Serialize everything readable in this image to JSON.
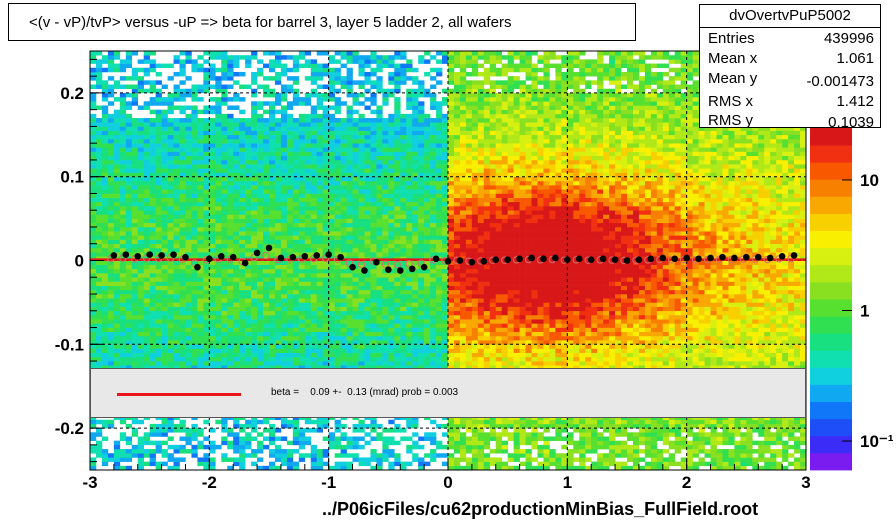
{
  "title": "<(v - vP)/tvP> versus  -uP => beta for barrel 3, layer 5 ladder 2, all wafers",
  "stats": {
    "name": "dvOvertvPuP5002",
    "rows": [
      {
        "label": "Entries",
        "value": "439996"
      },
      {
        "label": "Mean x",
        "value": "1.061"
      },
      {
        "label": "Mean y",
        "value": "-0.001473"
      },
      {
        "label": "RMS x",
        "value": "1.412"
      },
      {
        "label": "RMS y",
        "value": "0.1039"
      }
    ]
  },
  "legend": {
    "text": "beta =    0.09 +-  0.13 (mrad) prob = 0.003",
    "line_color": "#e8141a"
  },
  "footer": "../P06icFiles/cu62productionMinBias_FullField.root",
  "colors": {
    "fit_line": "#e8141a",
    "points": "#000000",
    "palette": [
      "#7a1cf0",
      "#3c2cf8",
      "#1e4ef8",
      "#1078f8",
      "#10a8f0",
      "#10d0e0",
      "#10e0b0",
      "#18e080",
      "#30e050",
      "#58e030",
      "#88e020",
      "#b0e818",
      "#d8f010",
      "#f8f000",
      "#f8d000",
      "#f8a800",
      "#f88000",
      "#f85800",
      "#f03010",
      "#d81818"
    ]
  },
  "chart_data": {
    "type": "heatmap",
    "xlim": [
      -3,
      3
    ],
    "ylim": [
      -0.25,
      0.25
    ],
    "x_ticks": [
      -3,
      -2,
      -1,
      0,
      1,
      2,
      3
    ],
    "x_tick_labels": [
      "-3",
      "-2",
      "-1",
      "0",
      "1",
      "2",
      "3"
    ],
    "y_ticks": [
      -0.2,
      -0.1,
      0,
      0.1,
      0.2
    ],
    "y_tick_labels": [
      "-0.2",
      "-0.1",
      "0",
      "0.1",
      "0.2"
    ],
    "grid": true,
    "colorbar": {
      "scale": "log",
      "tick_labels": [
        "10",
        "1",
        "10⁻¹"
      ],
      "tick_values": [
        10,
        1,
        0.1
      ]
    },
    "fit": {
      "slope_mrad": 0.09,
      "error_mrad": 0.13,
      "prob": 0.003
    },
    "profile_points": {
      "x": [
        -2.8,
        -2.7,
        -2.6,
        -2.5,
        -2.4,
        -2.3,
        -2.2,
        -2.1,
        -2.0,
        -1.9,
        -1.8,
        -1.7,
        -1.6,
        -1.5,
        -1.4,
        -1.3,
        -1.2,
        -1.1,
        -1.0,
        -0.9,
        -0.8,
        -0.7,
        -0.6,
        -0.5,
        -0.4,
        -0.3,
        -0.2,
        -0.1,
        0.0,
        0.1,
        0.2,
        0.3,
        0.4,
        0.5,
        0.6,
        0.7,
        0.8,
        0.9,
        1.0,
        1.1,
        1.2,
        1.3,
        1.4,
        1.5,
        1.6,
        1.7,
        1.8,
        1.9,
        2.0,
        2.1,
        2.2,
        2.3,
        2.4,
        2.5,
        2.6,
        2.7,
        2.8,
        2.9
      ],
      "y": [
        0.006,
        0.007,
        0.005,
        0.007,
        0.006,
        0.007,
        0.004,
        -0.008,
        0.002,
        0.005,
        0.004,
        -0.003,
        0.009,
        0.015,
        0.003,
        0.004,
        0.005,
        0.006,
        0.007,
        0.004,
        -0.008,
        -0.012,
        -0.002,
        -0.011,
        -0.012,
        -0.01,
        -0.008,
        0.002,
        -0.001,
        0.0,
        -0.002,
        -0.001,
        0.001,
        0.001,
        0.002,
        0.003,
        0.002,
        0.003,
        0.001,
        0.002,
        0.001,
        0.002,
        0.001,
        0.0,
        0.001,
        0.002,
        0.003,
        0.002,
        0.003,
        0.002,
        0.003,
        0.004,
        0.003,
        0.004,
        0.004,
        0.003,
        0.005,
        0.006
      ]
    }
  }
}
